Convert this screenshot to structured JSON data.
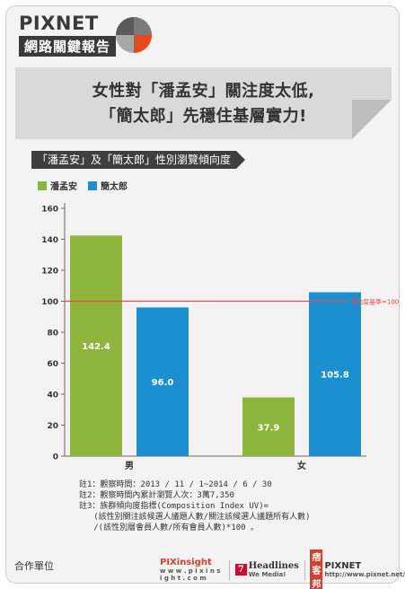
{
  "brand": {
    "title": "PIXNET",
    "subtitle": "網路關鍵報告",
    "logo_colors": [
      "#e84a1d",
      "#7a7a7a",
      "#a8a8a8"
    ]
  },
  "headline": {
    "line1": "女性對「潘孟安」關注度太低,",
    "line2": "「簡太郎」先穩住基層實力!"
  },
  "chart_data": {
    "type": "bar",
    "title": "「潘孟安」及「簡太郎」性別瀏覽傾向度",
    "categories": [
      "男",
      "女"
    ],
    "series": [
      {
        "name": "潘孟安",
        "color": "#8db53c",
        "values": [
          142.4,
          37.9
        ]
      },
      {
        "name": "簡太郎",
        "color": "#1b8fcf",
        "values": [
          96.0,
          105.8
        ]
      }
    ],
    "value_labels": [
      [
        "142.4",
        "37.9"
      ],
      [
        "96.0",
        "105.8"
      ]
    ],
    "ylim": [
      0,
      160
    ],
    "yticks": [
      0,
      20,
      40,
      60,
      80,
      100,
      120,
      140,
      160
    ],
    "reference": {
      "value": 100,
      "label": "傾向度基準=100",
      "color": "#e84a4a"
    },
    "grid": false,
    "legend": "top-left"
  },
  "notes": [
    "註1：觀察時間：2013 / 11 / 1~2014 / 6 / 30",
    "註2：觀察時間內累計瀏覽人次：3萬7,350",
    "註3：族群傾向度指標(Composition Index UV)=",
    "   (該性別關注該候選人議題人數/關注該候選人議題所有人數)",
    "   /(該性別層會員人數/所有會員人數)*100 。"
  ],
  "footer": {
    "label": "合作單位",
    "pix_insight": "PIXinsight",
    "pix_insight_url": "w w w . p i x i n s i g h t . c o m",
    "seven": "7",
    "headlines": "Headlines",
    "we_media": "We Media!",
    "blog_mark": "痞客邦",
    "pixnet": "PIXNET",
    "pixnet_url": "http://www.pixnet.net/"
  }
}
